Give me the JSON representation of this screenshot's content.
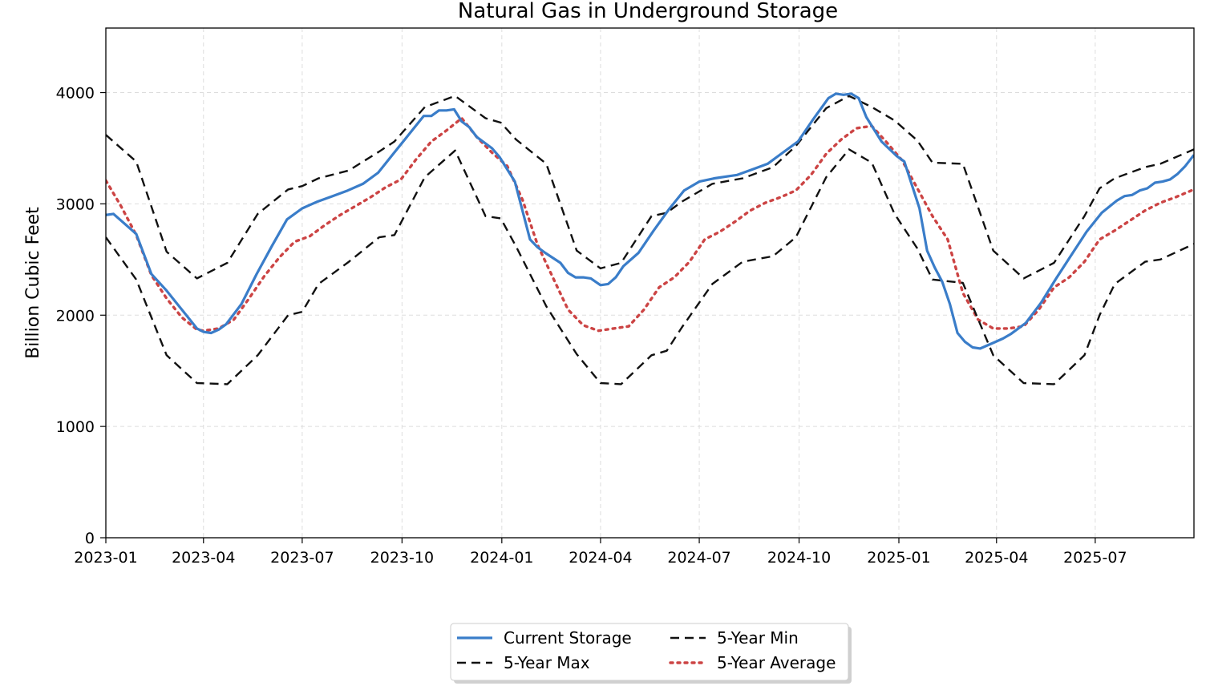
{
  "chart_data": {
    "type": "line",
    "title": "Natural Gas in Underground Storage",
    "xlabel": "",
    "ylabel": "Billion Cubic Feet",
    "xlim": [
      "2023-01-01",
      "2025-09-30"
    ],
    "ylim": [
      0,
      4580
    ],
    "grid": true,
    "legend_position": "bottom-center",
    "x_ticks": [
      "2023-01",
      "2023-04",
      "2023-07",
      "2023-10",
      "2024-01",
      "2024-04",
      "2024-07",
      "2024-10",
      "2025-01",
      "2025-04",
      "2025-07"
    ],
    "y_ticks": [
      0,
      1000,
      2000,
      3000,
      4000
    ],
    "series": [
      {
        "name": "Current Storage",
        "color": "#3a7dc9",
        "style": "solid",
        "x": [
          "2023-01-01",
          "2023-01-08",
          "2023-01-15",
          "2023-01-29",
          "2023-02-12",
          "2023-02-26",
          "2023-03-12",
          "2023-03-26",
          "2023-04-01",
          "2023-04-08",
          "2023-04-15",
          "2023-04-22",
          "2023-05-06",
          "2023-05-20",
          "2023-06-03",
          "2023-06-17",
          "2023-07-01",
          "2023-07-15",
          "2023-07-29",
          "2023-08-12",
          "2023-08-26",
          "2023-09-09",
          "2023-09-23",
          "2023-10-07",
          "2023-10-21",
          "2023-10-28",
          "2023-11-04",
          "2023-11-11",
          "2023-11-18",
          "2023-11-25",
          "2023-12-02",
          "2023-12-09",
          "2023-12-23",
          "2023-12-30",
          "2024-01-13",
          "2024-01-27",
          "2024-02-03",
          "2024-02-10",
          "2024-02-24",
          "2024-03-02",
          "2024-03-09",
          "2024-03-16",
          "2024-03-23",
          "2024-04-01",
          "2024-04-08",
          "2024-04-15",
          "2024-04-22",
          "2024-05-06",
          "2024-05-20",
          "2024-06-03",
          "2024-06-17",
          "2024-07-01",
          "2024-07-15",
          "2024-07-29",
          "2024-08-05",
          "2024-08-19",
          "2024-09-02",
          "2024-09-16",
          "2024-09-30",
          "2024-10-14",
          "2024-10-28",
          "2024-11-04",
          "2024-11-11",
          "2024-11-18",
          "2024-11-25",
          "2024-12-02",
          "2024-12-16",
          "2024-12-30",
          "2025-01-06",
          "2025-01-20",
          "2025-01-27",
          "2025-02-03",
          "2025-02-10",
          "2025-02-17",
          "2025-02-24",
          "2025-03-03",
          "2025-03-10",
          "2025-03-17",
          "2025-03-31",
          "2025-04-07",
          "2025-04-14",
          "2025-04-28",
          "2025-05-12",
          "2025-05-26",
          "2025-06-09",
          "2025-06-23",
          "2025-07-07",
          "2025-07-21",
          "2025-07-28",
          "2025-08-04",
          "2025-08-11",
          "2025-08-18",
          "2025-08-25",
          "2025-09-01",
          "2025-09-08",
          "2025-09-15",
          "2025-09-22",
          "2025-09-30"
        ],
        "values": [
          2900,
          2910,
          2850,
          2730,
          2370,
          2220,
          2050,
          1880,
          1850,
          1840,
          1870,
          1920,
          2100,
          2370,
          2620,
          2860,
          2960,
          3020,
          3070,
          3120,
          3180,
          3280,
          3450,
          3620,
          3790,
          3790,
          3840,
          3840,
          3850,
          3740,
          3690,
          3600,
          3500,
          3420,
          3200,
          2680,
          2610,
          2560,
          2470,
          2380,
          2340,
          2340,
          2330,
          2270,
          2280,
          2340,
          2440,
          2560,
          2760,
          2950,
          3120,
          3200,
          3230,
          3250,
          3260,
          3310,
          3360,
          3460,
          3560,
          3760,
          3950,
          3990,
          3980,
          3990,
          3950,
          3780,
          3560,
          3430,
          3380,
          2960,
          2580,
          2430,
          2300,
          2100,
          1840,
          1760,
          1710,
          1700,
          1760,
          1790,
          1830,
          1930,
          2110,
          2330,
          2540,
          2750,
          2920,
          3030,
          3070,
          3080,
          3120,
          3140,
          3190,
          3200,
          3220,
          3270,
          3340,
          3440
        ]
      },
      {
        "name": "5-Year Max",
        "color": "#111111",
        "style": "dashed",
        "x": [
          "2023-01-01",
          "2023-01-29",
          "2023-02-26",
          "2023-03-26",
          "2023-04-23",
          "2023-05-21",
          "2023-06-18",
          "2023-07-01",
          "2023-07-16",
          "2023-08-13",
          "2023-09-10",
          "2023-09-24",
          "2023-10-22",
          "2023-11-19",
          "2023-12-17",
          "2023-12-31",
          "2024-01-14",
          "2024-02-11",
          "2024-03-10",
          "2024-04-01",
          "2024-04-20",
          "2024-05-18",
          "2024-06-01",
          "2024-06-15",
          "2024-07-13",
          "2024-08-10",
          "2024-09-07",
          "2024-09-28",
          "2024-10-26",
          "2024-11-16",
          "2024-12-07",
          "2024-12-28",
          "2025-01-18",
          "2025-02-01",
          "2025-03-01",
          "2025-03-29",
          "2025-04-26",
          "2025-05-24",
          "2025-06-21",
          "2025-07-05",
          "2025-07-19",
          "2025-08-16",
          "2025-08-30",
          "2025-09-30"
        ],
        "values": [
          3620,
          3380,
          2570,
          2330,
          2470,
          2910,
          3130,
          3160,
          3230,
          3300,
          3470,
          3560,
          3870,
          3970,
          3770,
          3730,
          3580,
          3360,
          2580,
          2420,
          2470,
          2890,
          2920,
          3020,
          3180,
          3230,
          3330,
          3520,
          3860,
          3970,
          3870,
          3750,
          3570,
          3370,
          3360,
          2580,
          2330,
          2470,
          2890,
          3140,
          3230,
          3330,
          3360,
          3490
        ]
      },
      {
        "name": "5-Year Min",
        "color": "#111111",
        "style": "dashed",
        "x": [
          "2023-01-01",
          "2023-01-29",
          "2023-02-26",
          "2023-03-26",
          "2023-04-23",
          "2023-05-21",
          "2023-06-18",
          "2023-07-01",
          "2023-07-16",
          "2023-08-13",
          "2023-09-10",
          "2023-09-24",
          "2023-10-22",
          "2023-11-19",
          "2023-12-17",
          "2023-12-31",
          "2024-01-14",
          "2024-02-11",
          "2024-03-10",
          "2024-04-01",
          "2024-04-20",
          "2024-05-18",
          "2024-06-01",
          "2024-06-15",
          "2024-07-13",
          "2024-08-10",
          "2024-09-07",
          "2024-09-28",
          "2024-10-26",
          "2024-11-16",
          "2024-12-07",
          "2024-12-28",
          "2025-01-18",
          "2025-02-01",
          "2025-03-01",
          "2025-03-29",
          "2025-04-26",
          "2025-05-24",
          "2025-06-21",
          "2025-07-05",
          "2025-07-19",
          "2025-08-16",
          "2025-08-30",
          "2025-09-30"
        ],
        "values": [
          2700,
          2320,
          1640,
          1390,
          1380,
          1640,
          2000,
          2030,
          2280,
          2480,
          2700,
          2720,
          3240,
          3480,
          2890,
          2870,
          2620,
          2080,
          1650,
          1390,
          1380,
          1640,
          1680,
          1890,
          2280,
          2480,
          2530,
          2700,
          3240,
          3490,
          3370,
          2910,
          2600,
          2320,
          2290,
          1640,
          1390,
          1380,
          1640,
          2000,
          2280,
          2480,
          2500,
          2640
        ]
      },
      {
        "name": "5-Year Average",
        "color": "#cc4444",
        "style": "dotted",
        "x": [
          "2023-01-01",
          "2023-01-15",
          "2023-01-29",
          "2023-02-12",
          "2023-02-26",
          "2023-03-12",
          "2023-03-26",
          "2023-04-01",
          "2023-04-15",
          "2023-04-29",
          "2023-05-13",
          "2023-05-27",
          "2023-06-10",
          "2023-06-24",
          "2023-07-08",
          "2023-07-22",
          "2023-08-05",
          "2023-08-19",
          "2023-09-02",
          "2023-09-16",
          "2023-09-30",
          "2023-10-14",
          "2023-10-28",
          "2023-11-11",
          "2023-11-25",
          "2023-12-09",
          "2023-12-23",
          "2024-01-06",
          "2024-01-20",
          "2024-02-03",
          "2024-02-17",
          "2024-03-02",
          "2024-03-16",
          "2024-03-30",
          "2024-04-13",
          "2024-04-27",
          "2024-05-11",
          "2024-05-25",
          "2024-06-08",
          "2024-06-22",
          "2024-07-06",
          "2024-07-20",
          "2024-08-03",
          "2024-08-17",
          "2024-08-31",
          "2024-09-14",
          "2024-09-28",
          "2024-10-12",
          "2024-10-26",
          "2024-11-09",
          "2024-11-23",
          "2024-12-07",
          "2024-12-21",
          "2025-01-04",
          "2025-01-18",
          "2025-02-01",
          "2025-02-15",
          "2025-03-01",
          "2025-03-15",
          "2025-03-29",
          "2025-04-12",
          "2025-04-26",
          "2025-05-10",
          "2025-05-24",
          "2025-06-07",
          "2025-06-21",
          "2025-07-05",
          "2025-07-19",
          "2025-08-02",
          "2025-08-16",
          "2025-08-30",
          "2025-09-13",
          "2025-09-30"
        ],
        "values": [
          3210,
          2980,
          2720,
          2360,
          2150,
          1980,
          1870,
          1860,
          1880,
          1960,
          2150,
          2350,
          2520,
          2660,
          2710,
          2810,
          2900,
          2980,
          3060,
          3150,
          3220,
          3400,
          3560,
          3660,
          3770,
          3600,
          3460,
          3340,
          3040,
          2630,
          2340,
          2050,
          1910,
          1860,
          1880,
          1900,
          2050,
          2250,
          2340,
          2480,
          2680,
          2750,
          2840,
          2940,
          3010,
          3060,
          3120,
          3260,
          3450,
          3580,
          3680,
          3700,
          3550,
          3390,
          3140,
          2890,
          2680,
          2200,
          1960,
          1880,
          1880,
          1900,
          2050,
          2250,
          2340,
          2480,
          2680,
          2760,
          2850,
          2940,
          3010,
          3060,
          3130
        ]
      }
    ]
  }
}
